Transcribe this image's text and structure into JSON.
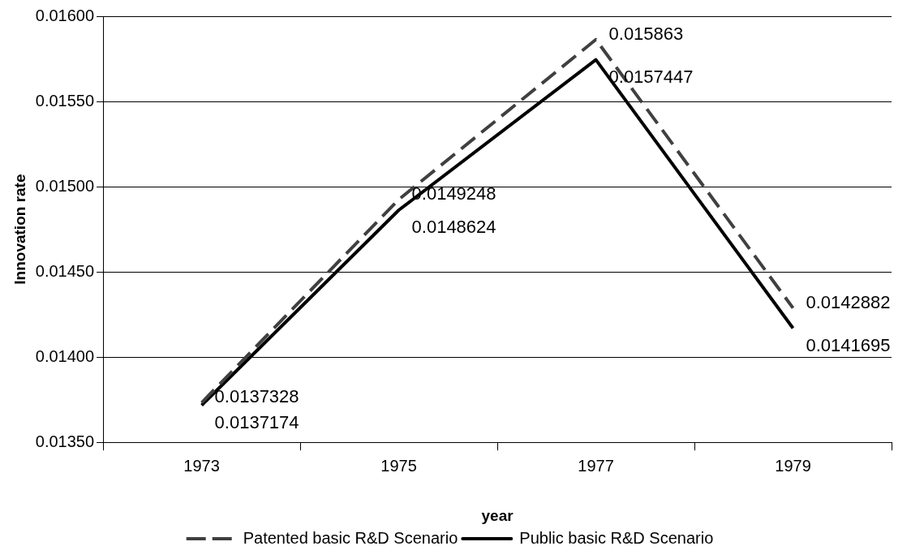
{
  "chart_data": {
    "type": "line",
    "xlabel": "year",
    "ylabel": "Innovation rate",
    "categories": [
      "1973",
      "1975",
      "1977",
      "1979"
    ],
    "series": [
      {
        "name": "Patented basic R&D Scenario",
        "color": "#404040",
        "line_style": "dashed",
        "values": [
          0.0137328,
          0.0149248,
          0.015863,
          0.0142882
        ]
      },
      {
        "name": "Public basic R&D Scenario",
        "color": "#000000",
        "line_style": "solid",
        "values": [
          0.0137174,
          0.0148624,
          0.0157447,
          0.0141695
        ]
      }
    ],
    "ylim": [
      0.0135,
      0.016
    ],
    "yticks": [
      {
        "value": 0.0135,
        "label": "0.01350"
      },
      {
        "value": 0.014,
        "label": "0.01400"
      },
      {
        "value": 0.0145,
        "label": "0.01450"
      },
      {
        "value": 0.015,
        "label": "0.01500"
      },
      {
        "value": 0.0155,
        "label": "0.01550"
      },
      {
        "value": 0.016,
        "label": "0.01600"
      }
    ],
    "grid": "y",
    "legend": "bottom",
    "marker": "none",
    "data_labels": true
  }
}
